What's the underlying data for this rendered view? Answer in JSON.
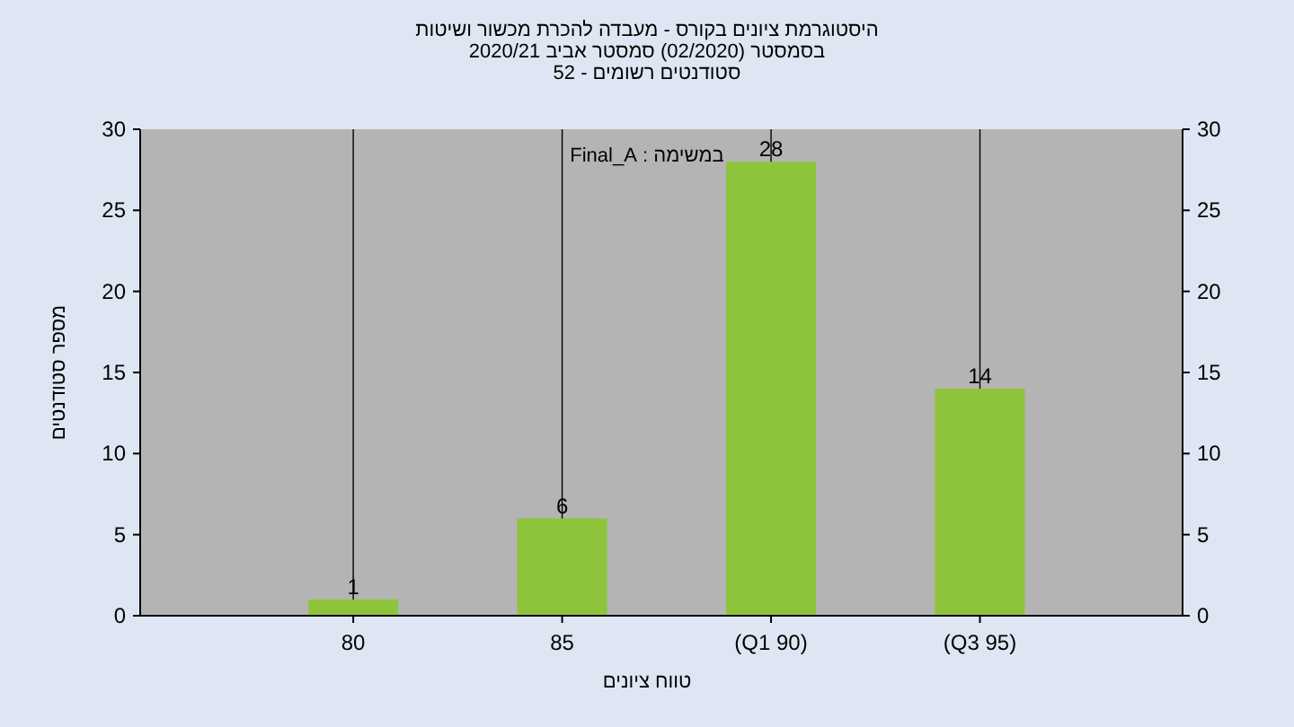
{
  "chart_data": {
    "type": "bar",
    "title": "היסטוגרמת ציונים בקורס - מעבדה להכרת מכשור ושיטות",
    "subtitle": "בסמסטר  (02/2020)  סמסטר אביב 2020/21",
    "annotations": [
      "סטודנטים רשומים - 52",
      "במשימה : Final_A"
    ],
    "xlabel": "טווח ציונים",
    "ylabel": "מספר סטודנטים",
    "categories": [
      "80",
      "85",
      "(Q1 90)",
      "(Q3 95)"
    ],
    "series": [
      {
        "color": "#8dc43c",
        "values": [
          1,
          6,
          28,
          14
        ]
      }
    ],
    "data_labels": true,
    "ylim": [
      0,
      30
    ],
    "yticks": [
      0,
      5,
      10,
      15,
      20,
      25,
      30
    ],
    "y2lim": [
      0,
      30
    ],
    "y2ticks": [
      0,
      5,
      10,
      15,
      20,
      25,
      30
    ],
    "grid": "x"
  }
}
